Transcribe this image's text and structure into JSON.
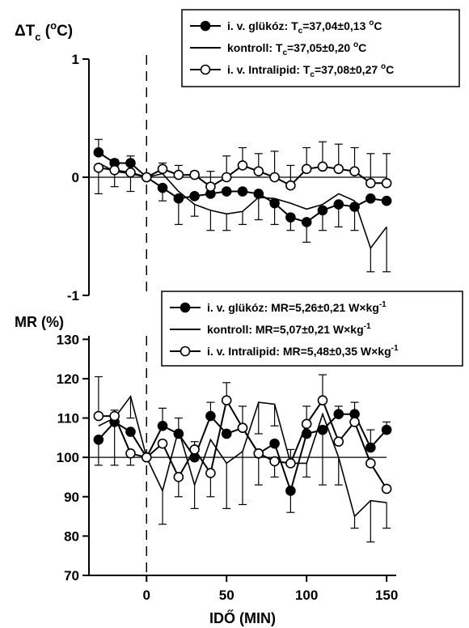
{
  "chart_data": [
    {
      "type": "line",
      "ylabel_parts": [
        "ΔT",
        "c",
        " (",
        "o",
        "C)"
      ],
      "xlim": [
        -36,
        156
      ],
      "ylim": [
        -1,
        1
      ],
      "yticks": [
        -1,
        0,
        1
      ],
      "yticklabels": [
        "-1",
        "0",
        "1"
      ],
      "zero_line_x": 0,
      "legend_position": "top-right",
      "legend": [
        {
          "series": "glucose",
          "marker": "filled-circle",
          "label": "i. v. glükóz: T",
          "sub": "c",
          "value": "=37,04",
          "pm": "±",
          "rest": "0,13 ",
          "unit_sup": "o",
          "unit": "C"
        },
        {
          "series": "control",
          "marker": "line",
          "label": "kontroll: T",
          "sub": "c",
          "value": "=37,05",
          "pm": "±",
          "rest": "0,20 ",
          "unit_sup": "o",
          "unit": "C"
        },
        {
          "series": "intralipid",
          "marker": "open-circle",
          "label": "i. v. Intralipid: T",
          "sub": "c",
          "value": "=37,08",
          "pm": "±",
          "rest": "0,27 ",
          "unit_sup": "o",
          "unit": "C"
        }
      ],
      "x": [
        -30,
        -20,
        -10,
        0,
        10,
        20,
        30,
        40,
        50,
        60,
        70,
        80,
        90,
        100,
        110,
        120,
        130,
        140,
        150
      ],
      "series": [
        {
          "id": "glucose",
          "marker": "filled-circle",
          "y": [
            0.21,
            0.12,
            0.12,
            0.0,
            -0.09,
            -0.18,
            -0.16,
            -0.14,
            -0.12,
            -0.12,
            -0.14,
            -0.22,
            -0.34,
            -0.38,
            -0.28,
            -0.23,
            -0.25,
            -0.18,
            -0.2
          ]
        },
        {
          "id": "control",
          "marker": "none",
          "y": [
            0.12,
            0.05,
            0.03,
            0.0,
            0.03,
            -0.12,
            -0.23,
            -0.28,
            -0.31,
            -0.29,
            -0.17,
            -0.18,
            -0.22,
            -0.27,
            -0.23,
            -0.14,
            -0.2,
            -0.6,
            -0.42
          ]
        },
        {
          "id": "intralipid",
          "marker": "open-circle",
          "y": [
            0.08,
            0.06,
            0.04,
            0.0,
            0.07,
            0.02,
            0.02,
            -0.08,
            0.0,
            0.1,
            0.05,
            0.0,
            -0.07,
            0.07,
            0.09,
            0.07,
            0.05,
            -0.05,
            -0.05
          ]
        }
      ],
      "error_bars": {
        "upper": [
          0.32,
          0.15,
          0.18,
          null,
          0.12,
          0.1,
          0.05,
          0.05,
          0.18,
          0.25,
          0.2,
          0.22,
          0.1,
          0.25,
          0.3,
          0.28,
          0.25,
          0.2,
          0.2
        ],
        "lower": [
          -0.14,
          -0.08,
          -0.12,
          null,
          -0.2,
          -0.4,
          -0.33,
          -0.45,
          -0.45,
          -0.4,
          -0.36,
          -0.4,
          -0.45,
          -0.55,
          -0.45,
          -0.42,
          -0.45,
          -0.8,
          -0.8
        ]
      }
    },
    {
      "type": "line",
      "ylabel": "MR (%)",
      "xlabel": "IDŐ (MIN)",
      "xlim": [
        -36,
        156
      ],
      "ylim": [
        70,
        135
      ],
      "yticks": [
        70,
        80,
        90,
        100,
        110,
        120,
        130
      ],
      "yticklabels": [
        "70",
        "80",
        "90",
        "100",
        "110",
        "120",
        "130"
      ],
      "xticks": [
        0,
        50,
        100,
        150
      ],
      "xticklabels": [
        "0",
        "50",
        "100",
        "150"
      ],
      "zero_line_x": 0,
      "legend_position": "top-right",
      "legend": [
        {
          "series": "glucose",
          "marker": "filled-circle",
          "label": "i. v. glükóz: MR=5,26",
          "pm": "±",
          "rest": "0,21 W×kg",
          "unit_sup": "-1"
        },
        {
          "series": "control",
          "marker": "line",
          "label": "kontroll: MR=5,07",
          "pm": "±",
          "rest": "0,21 W×kg",
          "unit_sup": "-1"
        },
        {
          "series": "intralipid",
          "marker": "open-circle",
          "label": "i. v. Intralipid: MR=5,48",
          "pm": "±",
          "rest": "0,35 W×kg",
          "unit_sup": "-1"
        }
      ],
      "x": [
        -30,
        -20,
        -10,
        0,
        10,
        20,
        30,
        40,
        50,
        60,
        70,
        80,
        90,
        100,
        110,
        120,
        130,
        140,
        150
      ],
      "series": [
        {
          "id": "glucose",
          "marker": "filled-circle",
          "y": [
            104.5,
            109.0,
            106.5,
            100.0,
            108.0,
            106.0,
            100.0,
            110.5,
            106.0,
            107.5,
            101.0,
            103.5,
            91.5,
            106.0,
            107.0,
            111.0,
            111.0,
            102.5,
            107.0
          ]
        },
        {
          "id": "control",
          "marker": "none",
          "y": [
            108.0,
            110.0,
            115.5,
            100.0,
            91.5,
            107.0,
            93.0,
            104.5,
            98.5,
            101.5,
            114.0,
            113.5,
            98.5,
            98.5,
            111.0,
            100.0,
            85.0,
            89.0,
            88.5
          ]
        },
        {
          "id": "intralipid",
          "marker": "open-circle",
          "y": [
            110.5,
            110.5,
            101.0,
            100.0,
            103.5,
            95.0,
            102.0,
            96.0,
            114.5,
            107.5,
            101.0,
            99.0,
            98.5,
            108.5,
            114.5,
            104.0,
            109.0,
            98.5,
            92.0
          ]
        }
      ],
      "error_bars": {
        "upper": [
          120.5,
          112.0,
          110.0,
          null,
          112.5,
          110.0,
          104.0,
          114.0,
          119.0,
          113.0,
          106.0,
          108.0,
          102.0,
          113.0,
          121.0,
          113.0,
          114.0,
          107.0,
          109.0
        ],
        "lower": [
          98.0,
          98.0,
          98.0,
          null,
          83.0,
          90.0,
          87.0,
          90.0,
          87.0,
          88.0,
          93.0,
          95.0,
          86.0,
          95.0,
          93.0,
          93.0,
          82.0,
          78.5,
          82.0
        ]
      }
    }
  ]
}
